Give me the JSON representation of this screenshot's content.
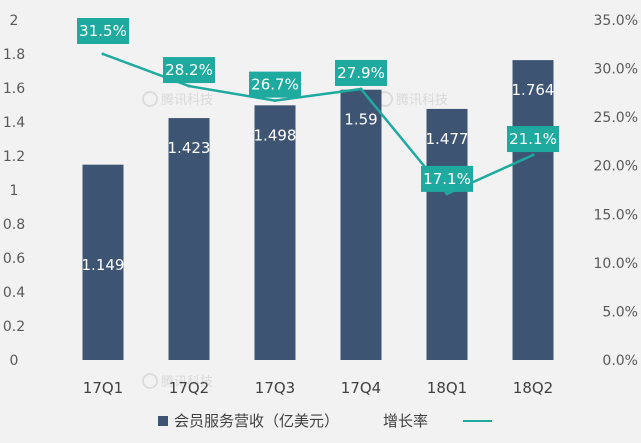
{
  "chart_data": {
    "type": "bar",
    "categories": [
      "17Q1",
      "17Q2",
      "17Q3",
      "17Q4",
      "18Q1",
      "18Q2"
    ],
    "series": [
      {
        "name": "会员服务营收（亿美元）",
        "type": "bar",
        "axis": "left",
        "values": [
          1.149,
          1.423,
          1.498,
          1.59,
          1.477,
          1.764
        ],
        "labels": [
          "1.149",
          "1.423",
          "1.498",
          "1.59",
          "1.477",
          "1.764"
        ],
        "color": "#3d5572"
      },
      {
        "name": "增长率",
        "type": "line",
        "axis": "right",
        "values": [
          31.5,
          28.2,
          26.7,
          27.9,
          17.1,
          21.1
        ],
        "labels": [
          "31.5%",
          "28.2%",
          "26.7%",
          "27.9%",
          "17.1%",
          "21.1%"
        ],
        "color": "#1eaa9f"
      }
    ],
    "y_left": {
      "ylim": [
        0,
        2
      ],
      "ticks": [
        "0",
        "0.2",
        "0.4",
        "0.6",
        "0.8",
        "1",
        "1.2",
        "1.4",
        "1.6",
        "1.8",
        "2"
      ]
    },
    "y_right": {
      "ylim": [
        0,
        35
      ],
      "ticks": [
        "0.0%",
        "5.0%",
        "10.0%",
        "15.0%",
        "20.0%",
        "25.0%",
        "30.0%",
        "35.0%"
      ]
    },
    "grid": false,
    "legend": "bottom-center",
    "title": "",
    "xlabel": "",
    "ylabel": ""
  },
  "watermark": {
    "text": "腾讯科技",
    "icon": "tencent-logo-icon"
  },
  "colors": {
    "background": "#f2f2f2",
    "bar": "#3d5572",
    "line": "#1eaa9f"
  }
}
